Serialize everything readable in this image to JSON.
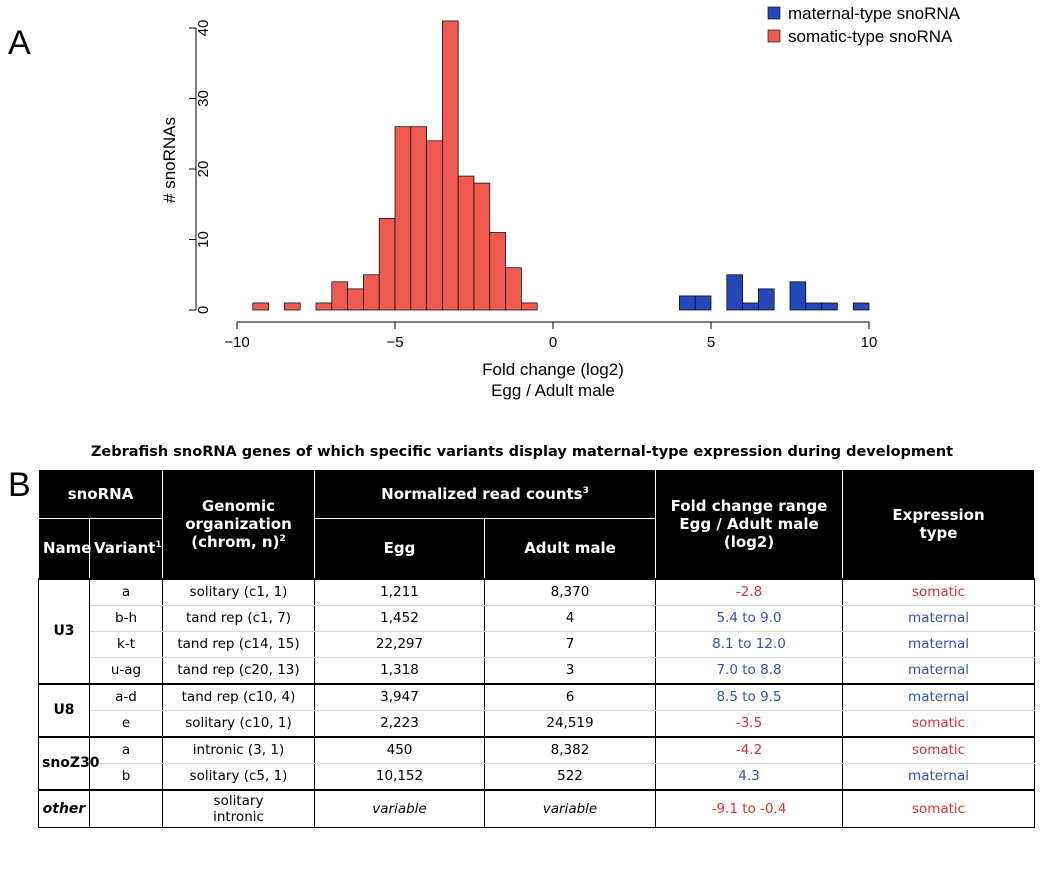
{
  "panel_labels": {
    "a": "A",
    "b": "B"
  },
  "chart_data": {
    "type": "bar",
    "xlabel": "Fold change (log2)",
    "xlabel2": "Egg / Adult male",
    "ylabel": "# snoRNAs",
    "xlim": [
      -10,
      10
    ],
    "ylim": [
      0,
      40
    ],
    "xticks": [
      -10,
      -5,
      0,
      5,
      10
    ],
    "yticks": [
      0,
      10,
      20,
      30,
      40
    ],
    "bin_width": 0.5,
    "grid": false,
    "legend_position": "top-right",
    "series": [
      {
        "name": "maternal-type snoRNA",
        "color": "#2448b8",
        "bins": [
          [
            4,
            2
          ],
          [
            4.5,
            2
          ],
          [
            5.5,
            5
          ],
          [
            6,
            1
          ],
          [
            6.5,
            3
          ],
          [
            7.5,
            4
          ],
          [
            8,
            1
          ],
          [
            8.5,
            1
          ],
          [
            9.5,
            1
          ]
        ]
      },
      {
        "name": "somatic-type snoRNA",
        "color": "#ee5a50",
        "bins": [
          [
            -9.5,
            1
          ],
          [
            -8.5,
            1
          ],
          [
            -7.5,
            1
          ],
          [
            -7,
            4
          ],
          [
            -6.5,
            3
          ],
          [
            -6,
            5
          ],
          [
            -5.5,
            13
          ],
          [
            -5,
            26
          ],
          [
            -4.5,
            26
          ],
          [
            -4,
            24
          ],
          [
            -3.5,
            41
          ],
          [
            -3,
            19
          ],
          [
            -2.5,
            18
          ],
          [
            -2,
            11
          ],
          [
            -1.5,
            6
          ],
          [
            -1,
            1
          ]
        ]
      }
    ]
  },
  "table": {
    "title": "Zebrafish snoRNA genes of which specific variants display maternal-type expression during development",
    "headers": {
      "snorna": "snoRNA",
      "name": "Name",
      "variant": "Variant",
      "variant_sup": "1",
      "genomic_line1": "Genomic",
      "genomic_line2": "organization",
      "genomic_line3": "(chrom, n)",
      "genomic_sup": "2",
      "normalized": "Normalized read counts",
      "normalized_sup": "3",
      "egg": "Egg",
      "adult": "Adult male",
      "fold_line1": "Fold change range",
      "fold_line2": "Egg / Adult male",
      "fold_line3": "(log2)",
      "expr_line1": "Expression",
      "expr_line2": "type"
    },
    "groups": [
      {
        "name": "U3",
        "rows": [
          {
            "variant": "a",
            "genomic": "solitary (c1, 1)",
            "egg": "1,211",
            "adult": "8,370",
            "fold": "-2.8",
            "type": "somatic"
          },
          {
            "variant": "b-h",
            "genomic": "tand rep (c1, 7)",
            "egg": "1,452",
            "adult": "4",
            "fold": "5.4 to 9.0",
            "type": "maternal"
          },
          {
            "variant": "k-t",
            "genomic": "tand rep (c14, 15)",
            "egg": "22,297",
            "adult": "7",
            "fold": "8.1 to 12.0",
            "type": "maternal"
          },
          {
            "variant": "u-ag",
            "genomic": "tand rep (c20, 13)",
            "egg": "1,318",
            "adult": "3",
            "fold": "7.0 to 8.8",
            "type": "maternal"
          }
        ]
      },
      {
        "name": "U8",
        "rows": [
          {
            "variant": "a-d",
            "genomic": "tand rep (c10, 4)",
            "egg": "3,947",
            "adult": "6",
            "fold": "8.5 to 9.5",
            "type": "maternal"
          },
          {
            "variant": "e",
            "genomic": "solitary (c10, 1)",
            "egg": "2,223",
            "adult": "24,519",
            "fold": "-3.5",
            "type": "somatic"
          }
        ]
      },
      {
        "name": "snoZ30",
        "rows": [
          {
            "variant": "a",
            "genomic": "intronic (3, 1)",
            "egg": "450",
            "adult": "8,382",
            "fold": "-4.2",
            "type": "somatic"
          },
          {
            "variant": "b",
            "genomic": "solitary (c5, 1)",
            "egg": "10,152",
            "adult": "522",
            "fold": "4.3",
            "type": "maternal"
          }
        ]
      }
    ],
    "other": {
      "name": "other",
      "variant": "",
      "genomic_line1": "solitary",
      "genomic_line2": "intronic",
      "egg": "variable",
      "adult": "variable",
      "fold": "-9.1 to -0.4",
      "type": "somatic"
    }
  }
}
